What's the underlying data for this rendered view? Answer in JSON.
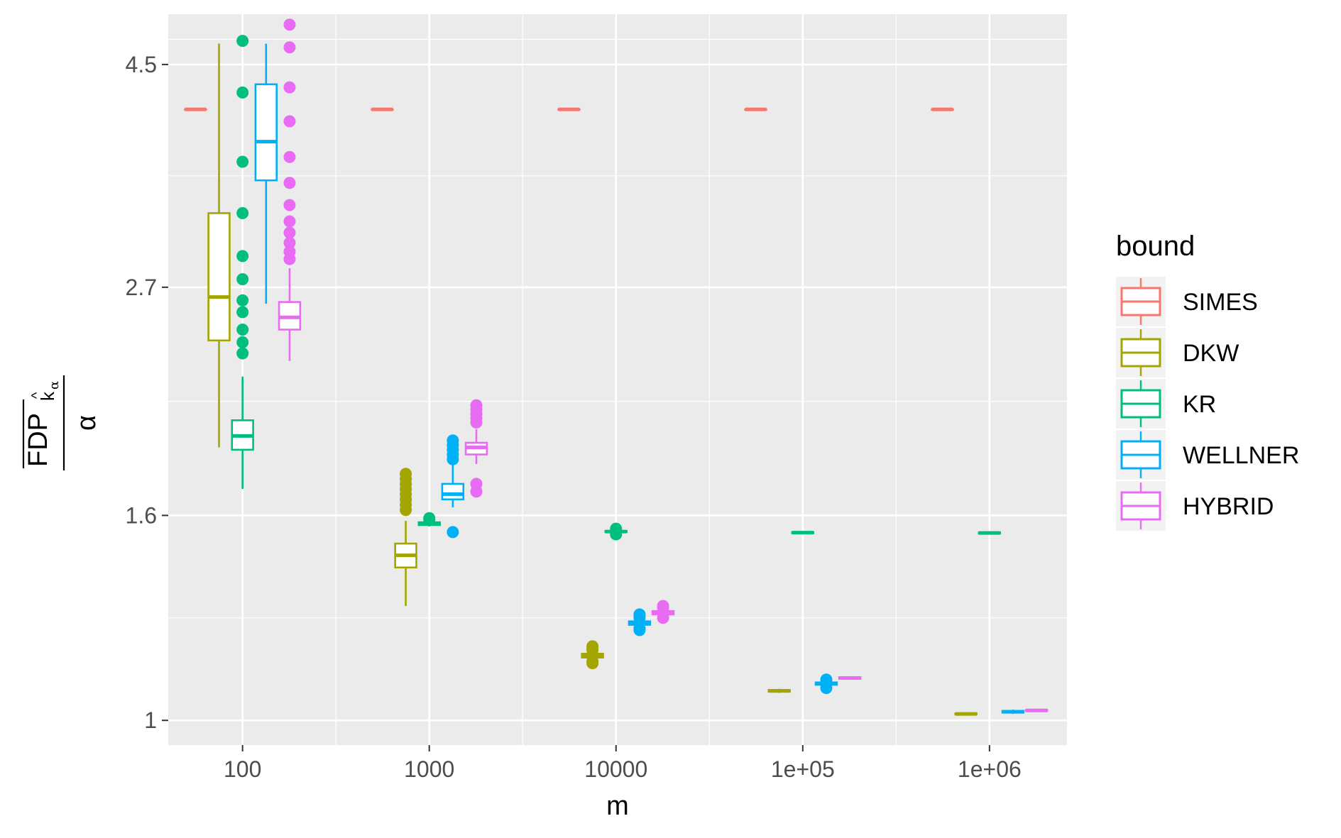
{
  "chart_data": {
    "type": "boxplot",
    "xlabel": "m",
    "ylabel": {
      "numerator_main": "FDP",
      "numerator_sub": "k",
      "numerator_subsub": "α",
      "numerator_hat": "^",
      "denominator": "α"
    },
    "x_scale": "log10",
    "x_ticks": [
      {
        "value": 100,
        "label": "100"
      },
      {
        "value": 1000,
        "label": "1000"
      },
      {
        "value": 10000,
        "label": "10000"
      },
      {
        "value": 100000,
        "label": "1e+05"
      },
      {
        "value": 1000000,
        "label": "1e+06"
      }
    ],
    "y_scale": "log",
    "y_ticks": [
      {
        "value": 1,
        "label": "1"
      },
      {
        "value": 1.6,
        "label": "1.6"
      },
      {
        "value": 2.7,
        "label": "2.7"
      },
      {
        "value": 4.5,
        "label": "4.5"
      }
    ],
    "xlim": [
      40,
      2600000
    ],
    "ylim": [
      0.945,
      5.05
    ],
    "grid": true,
    "legend": {
      "title": "bound",
      "position": "right",
      "entries": [
        {
          "name": "SIMES",
          "color": "#F8766D"
        },
        {
          "name": "DKW",
          "color": "#A3A500"
        },
        {
          "name": "KR",
          "color": "#00BF7D"
        },
        {
          "name": "WELLNER",
          "color": "#00B0F6"
        },
        {
          "name": "HYBRID",
          "color": "#E76BF3"
        }
      ]
    },
    "series": [
      {
        "name": "SIMES",
        "color": "#F8766D",
        "boxes": [
          {
            "m": 100,
            "min": 4.06,
            "q1": 4.06,
            "median": 4.06,
            "q3": 4.06,
            "max": 4.06,
            "outliers": []
          },
          {
            "m": 1000,
            "min": 4.06,
            "q1": 4.06,
            "median": 4.06,
            "q3": 4.06,
            "max": 4.06,
            "outliers": []
          },
          {
            "m": 10000,
            "min": 4.06,
            "q1": 4.06,
            "median": 4.06,
            "q3": 4.06,
            "max": 4.06,
            "outliers": []
          },
          {
            "m": 100000,
            "min": 4.06,
            "q1": 4.06,
            "median": 4.06,
            "q3": 4.06,
            "max": 4.06,
            "outliers": []
          },
          {
            "m": 1000000,
            "min": 4.06,
            "q1": 4.06,
            "median": 4.06,
            "q3": 4.06,
            "max": 4.06,
            "outliers": []
          }
        ]
      },
      {
        "name": "DKW",
        "color": "#A3A500",
        "boxes": [
          {
            "m": 100,
            "min": 1.87,
            "q1": 2.39,
            "median": 2.64,
            "q3": 3.2,
            "max": 4.72,
            "outliers": []
          },
          {
            "m": 1000,
            "min": 1.3,
            "q1": 1.42,
            "median": 1.46,
            "q3": 1.5,
            "max": 1.58,
            "outliers": [
              1.62,
              1.64,
              1.66,
              1.68,
              1.7,
              1.72,
              1.74,
              1.76
            ]
          },
          {
            "m": 10000,
            "min": 1.15,
            "q1": 1.155,
            "median": 1.16,
            "q3": 1.165,
            "max": 1.17,
            "outliers": [
              1.14,
              1.145,
              1.175,
              1.18,
              1.185
            ]
          },
          {
            "m": 100000,
            "min": 1.065,
            "q1": 1.068,
            "median": 1.07,
            "q3": 1.072,
            "max": 1.075,
            "outliers": []
          },
          {
            "m": 1000000,
            "min": 1.012,
            "q1": 1.014,
            "median": 1.015,
            "q3": 1.016,
            "max": 1.018,
            "outliers": []
          }
        ]
      },
      {
        "name": "KR",
        "color": "#00BF7D",
        "boxes": [
          {
            "m": 100,
            "min": 1.7,
            "q1": 1.86,
            "median": 1.92,
            "q3": 1.99,
            "max": 2.2,
            "outliers": [
              2.32,
              2.38,
              2.45,
              2.55,
              2.62,
              2.75,
              2.9,
              3.2,
              3.6,
              4.22,
              4.75
            ]
          },
          {
            "m": 1000,
            "min": 1.56,
            "q1": 1.565,
            "median": 1.57,
            "q3": 1.575,
            "max": 1.58,
            "outliers": [
              1.585,
              1.59
            ]
          },
          {
            "m": 10000,
            "min": 1.535,
            "q1": 1.54,
            "median": 1.542,
            "q3": 1.544,
            "max": 1.548,
            "outliers": [
              1.552,
              1.532
            ]
          },
          {
            "m": 100000,
            "min": 1.532,
            "q1": 1.536,
            "median": 1.538,
            "q3": 1.54,
            "max": 1.544,
            "outliers": []
          },
          {
            "m": 1000000,
            "min": 1.532,
            "q1": 1.535,
            "median": 1.537,
            "q3": 1.539,
            "max": 1.543,
            "outliers": []
          }
        ]
      },
      {
        "name": "WELLNER",
        "color": "#00B0F6",
        "boxes": [
          {
            "m": 100,
            "min": 2.6,
            "q1": 3.45,
            "median": 3.77,
            "q3": 4.3,
            "max": 4.72,
            "outliers": []
          },
          {
            "m": 1000,
            "min": 1.63,
            "q1": 1.66,
            "median": 1.68,
            "q3": 1.72,
            "max": 1.8,
            "outliers": [
              1.54,
              1.82,
              1.84,
              1.86,
              1.88,
              1.9
            ]
          },
          {
            "m": 10000,
            "min": 1.24,
            "q1": 1.245,
            "median": 1.25,
            "q3": 1.255,
            "max": 1.26,
            "outliers": [
              1.23,
              1.235,
              1.265,
              1.27,
              1.275
            ]
          },
          {
            "m": 100000,
            "min": 1.08,
            "q1": 1.085,
            "median": 1.088,
            "q3": 1.091,
            "max": 1.095,
            "outliers": [
              1.077,
              1.098
            ]
          },
          {
            "m": 1000000,
            "min": 1.015,
            "q1": 1.018,
            "median": 1.02,
            "q3": 1.022,
            "max": 1.025,
            "outliers": []
          }
        ]
      },
      {
        "name": "HYBRID",
        "color": "#E76BF3",
        "boxes": [
          {
            "m": 100,
            "min": 2.28,
            "q1": 2.45,
            "median": 2.52,
            "q3": 2.61,
            "max": 2.82,
            "outliers": [
              2.88,
              2.93,
              2.99,
              3.06,
              3.14,
              3.26,
              3.43,
              3.64,
              3.95,
              4.27,
              4.68,
              4.93
            ]
          },
          {
            "m": 1000,
            "min": 1.8,
            "q1": 1.84,
            "median": 1.87,
            "q3": 1.89,
            "max": 1.95,
            "outliers": [
              1.69,
              1.72,
              1.98,
              2.0,
              2.02,
              2.04,
              2.06
            ]
          },
          {
            "m": 10000,
            "min": 1.27,
            "q1": 1.275,
            "median": 1.28,
            "q3": 1.285,
            "max": 1.29,
            "outliers": [
              1.265,
              1.295,
              1.3
            ]
          },
          {
            "m": 100000,
            "min": 1.098,
            "q1": 1.1,
            "median": 1.102,
            "q3": 1.104,
            "max": 1.106,
            "outliers": []
          },
          {
            "m": 1000000,
            "min": 1.02,
            "q1": 1.022,
            "median": 1.023,
            "q3": 1.024,
            "max": 1.026,
            "outliers": []
          }
        ]
      }
    ]
  }
}
